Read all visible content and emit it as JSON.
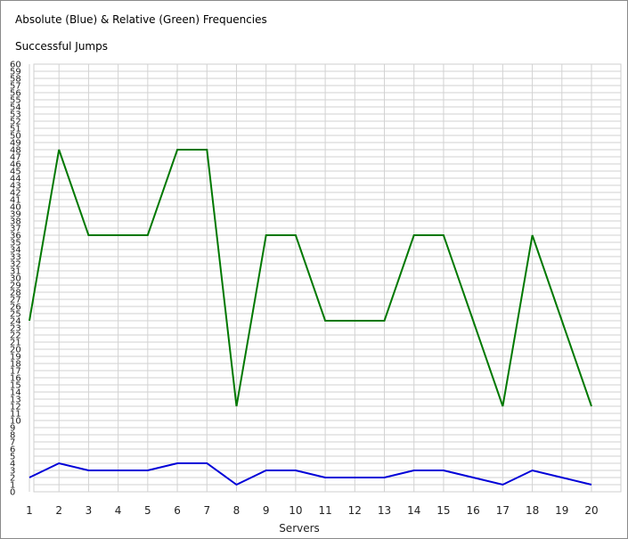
{
  "window": {
    "title": "Absolute (Blue) & Relative (Green) Frequencies",
    "subtitle": "Successful Jumps"
  },
  "chart_data": {
    "type": "line",
    "title": "Absolute (Blue) & Relative (Green) Frequencies",
    "subtitle": "Successful Jumps",
    "xlabel": "Servers",
    "ylabel": "",
    "x": [
      1,
      2,
      3,
      4,
      5,
      6,
      7,
      8,
      9,
      10,
      11,
      12,
      13,
      14,
      15,
      16,
      17,
      18,
      19,
      20
    ],
    "ylim": [
      0,
      60
    ],
    "yticks_step": 1,
    "grid": true,
    "legend": "none",
    "series": [
      {
        "color": "#007800",
        "values": [
          24,
          48,
          36,
          36,
          36,
          48,
          48,
          12,
          36,
          36,
          24,
          24,
          24,
          36,
          36,
          24,
          12,
          36,
          24,
          12
        ]
      },
      {
        "color": "#0000d8",
        "values": [
          2,
          4,
          3,
          3,
          3,
          4,
          4,
          1,
          3,
          3,
          2,
          2,
          2,
          3,
          3,
          2,
          1,
          3,
          2,
          1
        ]
      }
    ]
  }
}
